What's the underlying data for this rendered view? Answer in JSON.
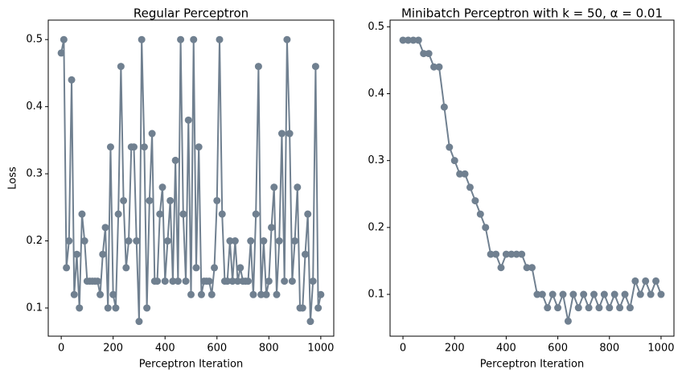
{
  "chart_data": [
    {
      "type": "line",
      "title": "Regular Perceptron",
      "xlabel": "Perceptron Iteration",
      "ylabel": "Loss",
      "xlim": [
        -50,
        1050
      ],
      "ylim": [
        0.058,
        0.529
      ],
      "xticks": [
        0,
        200,
        400,
        600,
        800,
        1000
      ],
      "yticks": [
        0.1,
        0.2,
        0.3,
        0.4,
        0.5
      ],
      "x": [
        0,
        10,
        20,
        30,
        40,
        50,
        60,
        70,
        80,
        90,
        100,
        110,
        120,
        130,
        140,
        150,
        160,
        170,
        180,
        190,
        200,
        210,
        220,
        230,
        240,
        250,
        260,
        270,
        280,
        290,
        300,
        310,
        320,
        330,
        340,
        350,
        360,
        370,
        380,
        390,
        400,
        410,
        420,
        430,
        440,
        450,
        460,
        470,
        480,
        490,
        500,
        510,
        520,
        530,
        540,
        550,
        560,
        570,
        580,
        590,
        600,
        610,
        620,
        630,
        640,
        650,
        660,
        670,
        680,
        690,
        700,
        710,
        720,
        730,
        740,
        750,
        760,
        770,
        780,
        790,
        800,
        810,
        820,
        830,
        840,
        850,
        860,
        870,
        880,
        890,
        900,
        910,
        920,
        930,
        940,
        950,
        960,
        970,
        980,
        990,
        1000
      ],
      "series": [
        {
          "name": "Regular",
          "color": "#708090",
          "values": [
            0.48,
            0.5,
            0.16,
            0.2,
            0.44,
            0.12,
            0.18,
            0.1,
            0.24,
            0.2,
            0.14,
            0.14,
            0.14,
            0.14,
            0.14,
            0.12,
            0.18,
            0.22,
            0.1,
            0.34,
            0.12,
            0.1,
            0.24,
            0.46,
            0.26,
            0.16,
            0.2,
            0.34,
            0.34,
            0.2,
            0.08,
            0.5,
            0.34,
            0.1,
            0.26,
            0.36,
            0.14,
            0.14,
            0.24,
            0.28,
            0.14,
            0.2,
            0.26,
            0.14,
            0.32,
            0.14,
            0.5,
            0.24,
            0.14,
            0.38,
            0.12,
            0.5,
            0.16,
            0.34,
            0.12,
            0.14,
            0.14,
            0.14,
            0.12,
            0.16,
            0.26,
            0.5,
            0.24,
            0.14,
            0.14,
            0.2,
            0.14,
            0.2,
            0.14,
            0.16,
            0.14,
            0.14,
            0.14,
            0.2,
            0.12,
            0.24,
            0.46,
            0.12,
            0.2,
            0.12,
            0.14,
            0.22,
            0.28,
            0.12,
            0.2,
            0.36,
            0.14,
            0.5,
            0.36,
            0.14,
            0.2,
            0.28,
            0.1,
            0.1,
            0.18,
            0.24,
            0.08,
            0.14,
            0.46,
            0.1,
            0.12
          ]
        }
      ]
    },
    {
      "type": "line",
      "title": "Minibatch Perceptron with k = 50, α = 0.01",
      "xlabel": "Perceptron Iteration",
      "xlim": [
        -50,
        1050
      ],
      "ylim": [
        0.0375,
        0.51
      ],
      "xticks": [
        0,
        200,
        400,
        600,
        800,
        1000
      ],
      "yticks": [
        0.1,
        0.2,
        0.3,
        0.4,
        0.5
      ],
      "x": [
        0,
        20,
        40,
        60,
        80,
        100,
        120,
        140,
        160,
        180,
        200,
        220,
        240,
        260,
        280,
        300,
        320,
        340,
        360,
        380,
        400,
        420,
        440,
        460,
        480,
        500,
        520,
        540,
        560,
        580,
        600,
        620,
        640,
        660,
        680,
        700,
        720,
        740,
        760,
        780,
        800,
        820,
        840,
        860,
        880,
        900,
        920,
        940,
        960,
        980,
        1000
      ],
      "series": [
        {
          "name": "Minibatch",
          "color": "#708090",
          "values": [
            0.48,
            0.48,
            0.48,
            0.48,
            0.46,
            0.46,
            0.44,
            0.44,
            0.38,
            0.32,
            0.3,
            0.28,
            0.28,
            0.26,
            0.24,
            0.22,
            0.2,
            0.16,
            0.16,
            0.14,
            0.16,
            0.16,
            0.16,
            0.16,
            0.14,
            0.14,
            0.1,
            0.1,
            0.08,
            0.1,
            0.08,
            0.1,
            0.06,
            0.1,
            0.08,
            0.1,
            0.08,
            0.1,
            0.08,
            0.1,
            0.08,
            0.1,
            0.08,
            0.1,
            0.08,
            0.12,
            0.1,
            0.12,
            0.1,
            0.12,
            0.1
          ]
        }
      ]
    }
  ]
}
